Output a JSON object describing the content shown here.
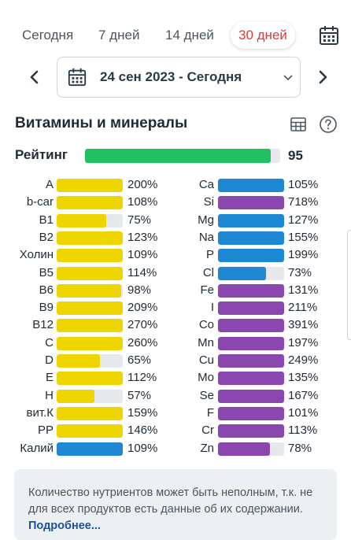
{
  "period_tabs": [
    {
      "label": "Сегодня",
      "active": false
    },
    {
      "label": "7 дней",
      "active": false
    },
    {
      "label": "14 дней",
      "active": false
    },
    {
      "label": "30 дней",
      "active": true
    }
  ],
  "date_range": {
    "text": "24 сен 2023 - Сегодня"
  },
  "section": {
    "title": "Витамины и минералы"
  },
  "rating": {
    "label": "Рейтинг",
    "value": "95",
    "percent": 95
  },
  "colors": {
    "vitamin": "#eed500",
    "mineral_blue": "#1f88d2",
    "mineral_purple": "#8a47b0",
    "rating": "#22c063",
    "active_tab": "#e53935",
    "link": "#1a4f9c"
  },
  "left_nutrients": [
    {
      "name": "A",
      "value": "200%",
      "percent": 200,
      "color": "yellow"
    },
    {
      "name": "b-car",
      "value": "108%",
      "percent": 108,
      "color": "yellow"
    },
    {
      "name": "B1",
      "value": "75%",
      "percent": 75,
      "color": "yellow"
    },
    {
      "name": "B2",
      "value": "123%",
      "percent": 123,
      "color": "yellow"
    },
    {
      "name": "Холин",
      "value": "109%",
      "percent": 109,
      "color": "yellow"
    },
    {
      "name": "B5",
      "value": "114%",
      "percent": 114,
      "color": "yellow"
    },
    {
      "name": "B6",
      "value": "98%",
      "percent": 98,
      "color": "yellow"
    },
    {
      "name": "B9",
      "value": "209%",
      "percent": 209,
      "color": "yellow"
    },
    {
      "name": "B12",
      "value": "270%",
      "percent": 270,
      "color": "yellow"
    },
    {
      "name": "C",
      "value": "260%",
      "percent": 260,
      "color": "yellow"
    },
    {
      "name": "D",
      "value": "65%",
      "percent": 65,
      "color": "yellow"
    },
    {
      "name": "E",
      "value": "112%",
      "percent": 112,
      "color": "yellow"
    },
    {
      "name": "H",
      "value": "57%",
      "percent": 57,
      "color": "yellow"
    },
    {
      "name": "вит.К",
      "value": "159%",
      "percent": 159,
      "color": "yellow"
    },
    {
      "name": "PP",
      "value": "146%",
      "percent": 146,
      "color": "yellow"
    },
    {
      "name": "Калий",
      "value": "109%",
      "percent": 109,
      "color": "blue"
    }
  ],
  "right_nutrients": [
    {
      "name": "Ca",
      "value": "105%",
      "percent": 105,
      "color": "blue"
    },
    {
      "name": "Si",
      "value": "718%",
      "percent": 718,
      "color": "purple"
    },
    {
      "name": "Mg",
      "value": "127%",
      "percent": 127,
      "color": "blue"
    },
    {
      "name": "Na",
      "value": "155%",
      "percent": 155,
      "color": "blue"
    },
    {
      "name": "P",
      "value": "199%",
      "percent": 199,
      "color": "blue"
    },
    {
      "name": "Cl",
      "value": "73%",
      "percent": 73,
      "color": "blue"
    },
    {
      "name": "Fe",
      "value": "131%",
      "percent": 131,
      "color": "purple"
    },
    {
      "name": "I",
      "value": "211%",
      "percent": 211,
      "color": "purple"
    },
    {
      "name": "Co",
      "value": "391%",
      "percent": 391,
      "color": "purple"
    },
    {
      "name": "Mn",
      "value": "197%",
      "percent": 197,
      "color": "purple"
    },
    {
      "name": "Cu",
      "value": "249%",
      "percent": 249,
      "color": "purple"
    },
    {
      "name": "Mo",
      "value": "135%",
      "percent": 135,
      "color": "purple"
    },
    {
      "name": "Se",
      "value": "167%",
      "percent": 167,
      "color": "purple"
    },
    {
      "name": "F",
      "value": "101%",
      "percent": 101,
      "color": "purple"
    },
    {
      "name": "Cr",
      "value": "113%",
      "percent": 113,
      "color": "purple"
    },
    {
      "name": "Zn",
      "value": "78%",
      "percent": 78,
      "color": "purple"
    }
  ],
  "notice": {
    "text": "Количество нутриентов может быть неполным, т.к. не для всех продуктов есть данные об их содержании. ",
    "link": "Подробнее..."
  },
  "icons": {
    "calendar": "calendar-icon",
    "prev": "chevron-left-icon",
    "next": "chevron-right-icon",
    "dropdown": "chevron-down-icon",
    "table": "table-icon",
    "help": "help-icon"
  }
}
